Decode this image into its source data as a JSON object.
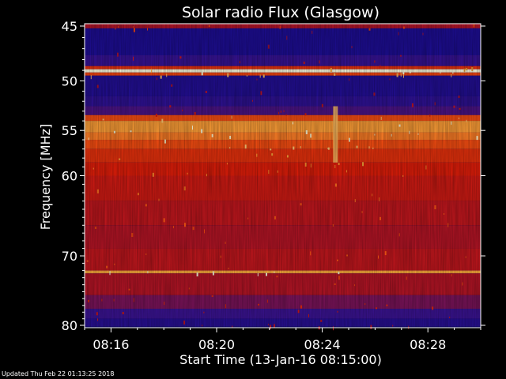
{
  "chart_data": {
    "type": "heatmap",
    "title": "Solar radio Flux (Glasgow)",
    "xlabel": "Start Time (13-Jan-16 08:15:00)",
    "ylabel": "Frequency [MHz]",
    "x_ticks": [
      "08:16",
      "08:20",
      "08:24",
      "08:28"
    ],
    "x_tick_minutes": [
      1,
      5,
      9,
      13
    ],
    "xlim_minutes": [
      0,
      15
    ],
    "y_ticks": [
      45,
      50,
      55,
      60,
      70,
      80
    ],
    "ylim": [
      45,
      80
    ],
    "y_scale": "log",
    "colormap": "blue-red-yellow-white (intensity)",
    "bands": [
      {
        "from": 44.8,
        "to": 45.2,
        "level": 0.35
      },
      {
        "from": 45.2,
        "to": 47.6,
        "level": 0.08
      },
      {
        "from": 47.6,
        "to": 48.6,
        "level": 0.18
      },
      {
        "from": 48.6,
        "to": 48.9,
        "level": 0.55
      },
      {
        "from": 48.9,
        "to": 49.2,
        "level": 1.0
      },
      {
        "from": 49.2,
        "to": 49.5,
        "level": 0.6
      },
      {
        "from": 49.5,
        "to": 51.5,
        "level": 0.1
      },
      {
        "from": 51.5,
        "to": 52.5,
        "level": 0.15
      },
      {
        "from": 52.5,
        "to": 53.4,
        "level": 0.22
      },
      {
        "from": 53.4,
        "to": 54.0,
        "level": 0.62
      },
      {
        "from": 54.0,
        "to": 55.2,
        "level": 0.78
      },
      {
        "from": 55.2,
        "to": 56.0,
        "level": 0.72
      },
      {
        "from": 56.0,
        "to": 57.0,
        "level": 0.62
      },
      {
        "from": 57.0,
        "to": 58.5,
        "level": 0.55
      },
      {
        "from": 58.5,
        "to": 60.0,
        "level": 0.5
      },
      {
        "from": 60.0,
        "to": 63.0,
        "level": 0.45
      },
      {
        "from": 63.0,
        "to": 66.0,
        "level": 0.4
      },
      {
        "from": 66.0,
        "to": 69.0,
        "level": 0.36
      },
      {
        "from": 69.0,
        "to": 72.0,
        "level": 0.4
      },
      {
        "from": 72.0,
        "to": 72.4,
        "level": 0.8
      },
      {
        "from": 72.4,
        "to": 75.5,
        "level": 0.36
      },
      {
        "from": 75.5,
        "to": 77.5,
        "level": 0.28
      },
      {
        "from": 77.5,
        "to": 79.0,
        "level": 0.2
      },
      {
        "from": 79.0,
        "to": 80.2,
        "level": 0.12
      }
    ],
    "burst_columns_minutes": [
      9.5
    ],
    "grid": false,
    "legend": "none"
  },
  "colors": {
    "background": "#000000",
    "foreground": "#ffffff",
    "low": "#0a0a9a",
    "mid": "#c81010",
    "high": "#ff9020",
    "peak": "#ffffe0"
  },
  "footer": {
    "updated": "Updated Thu Feb 22 01:13:25 2018"
  }
}
